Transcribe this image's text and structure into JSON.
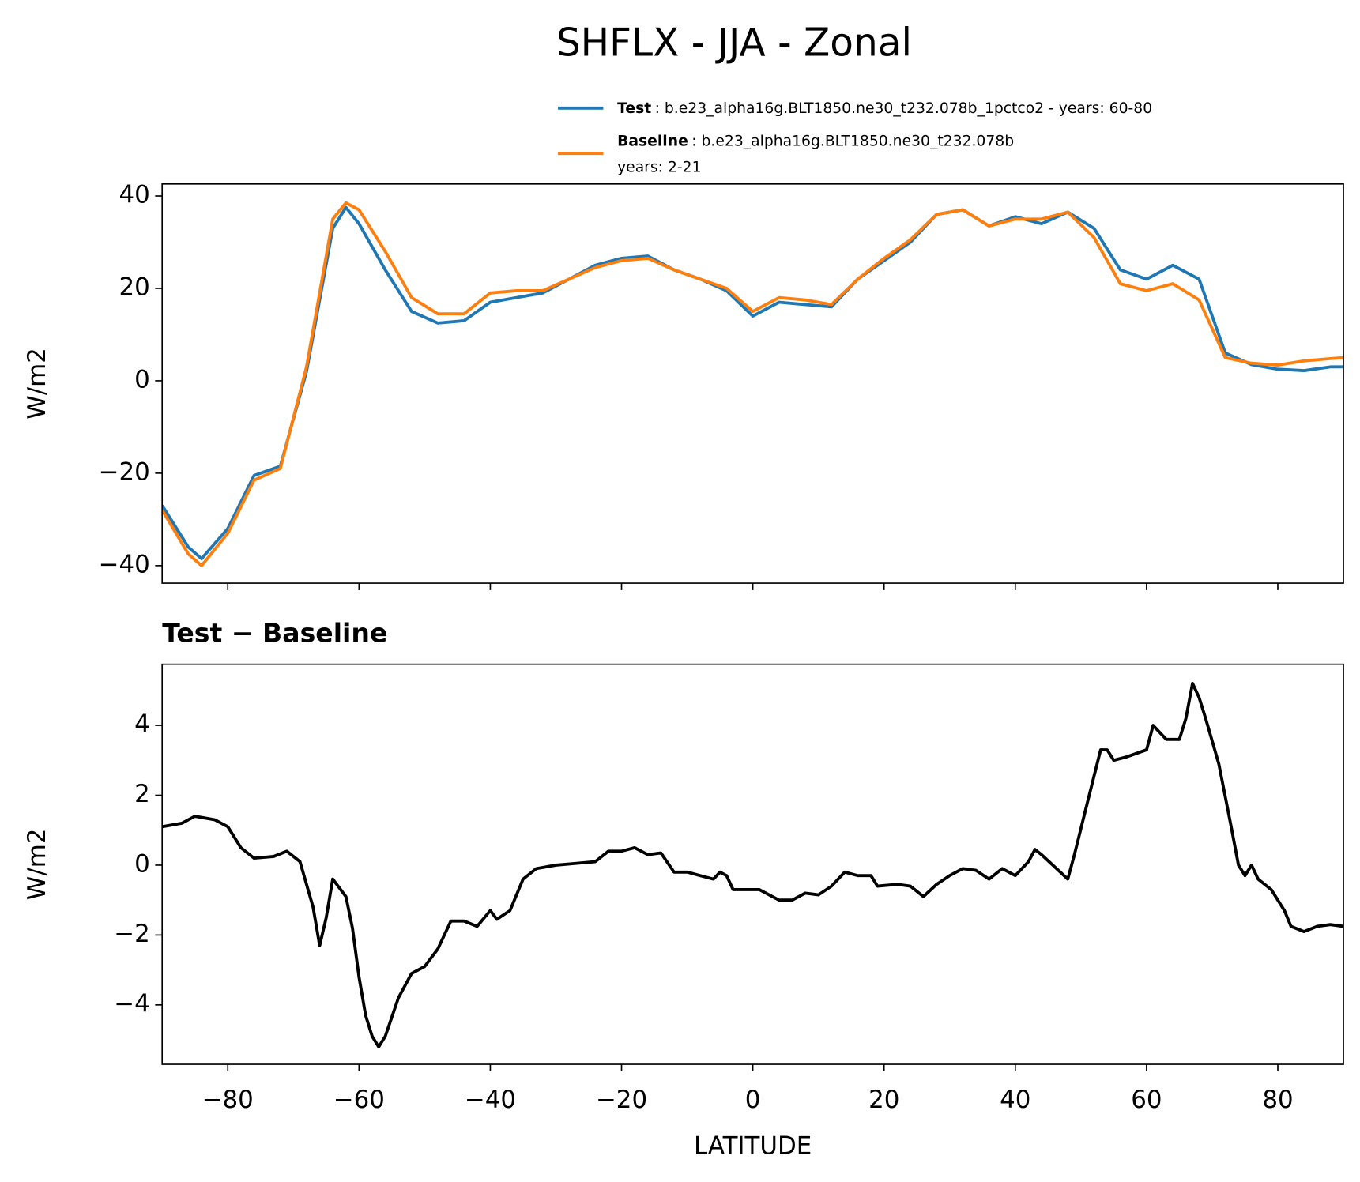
{
  "chart_data": [
    {
      "type": "line",
      "title": "SHFLX - JJA - Zonal",
      "ylabel": "W/m2",
      "x": [
        -90,
        -86,
        -84,
        -80,
        -76,
        -72,
        -68,
        -64,
        -62,
        -60,
        -56,
        -52,
        -48,
        -44,
        -40,
        -36,
        -32,
        -28,
        -24,
        -20,
        -16,
        -12,
        -8,
        -4,
        0,
        4,
        8,
        12,
        16,
        20,
        24,
        28,
        32,
        36,
        40,
        44,
        48,
        52,
        56,
        60,
        64,
        68,
        72,
        76,
        80,
        84,
        88,
        90
      ],
      "series": [
        {
          "name": "Test",
          "description": ": b.e23_alpha16g.BLT1850.ne30_t232.078b_1pctco2 - years: 60-80",
          "color": "#1f77b4",
          "values": [
            -27,
            -36,
            -38.5,
            -32,
            -20.5,
            -18.5,
            2,
            33,
            37.5,
            34,
            24,
            15,
            12.5,
            13,
            17,
            18,
            19,
            22,
            25,
            26.5,
            27,
            24,
            22,
            19.5,
            14,
            17,
            16.5,
            16,
            22,
            26,
            30,
            36,
            37,
            33.5,
            35.5,
            34,
            36.5,
            33,
            24,
            22,
            25,
            22,
            6,
            3.5,
            2.5,
            2.2,
            3,
            3
          ]
        },
        {
          "name": "Baseline",
          "description": ": b.e23_alpha16g.BLT1850.ne30_t232.078b",
          "description_line2": "years: 2-21",
          "color": "#ff7f0e",
          "values": [
            -28,
            -37.5,
            -40,
            -33,
            -21.5,
            -19,
            3,
            35,
            38.5,
            37,
            28,
            18,
            14.5,
            14.5,
            19,
            19.5,
            19.5,
            22,
            24.5,
            26,
            26.5,
            24,
            22,
            20,
            15,
            18,
            17.5,
            16.5,
            22,
            26.5,
            30.5,
            36,
            37,
            33.5,
            35,
            35,
            36.5,
            31,
            21,
            19.5,
            21,
            17.5,
            5,
            3.8,
            3.4,
            4.3,
            4.8,
            5
          ]
        }
      ],
      "xlim": [
        -90,
        90
      ],
      "xticks": [
        -80,
        -60,
        -40,
        -20,
        0,
        20,
        40,
        60,
        80
      ],
      "ylim": [
        -43.8,
        42.6
      ],
      "yticks": [
        {
          "value": -40,
          "label": "−40"
        },
        {
          "value": -20,
          "label": "−20"
        },
        0,
        20,
        40
      ]
    },
    {
      "type": "line",
      "title": "Test − Baseline",
      "xlabel": "LATITUDE",
      "ylabel": "W/m2",
      "x": [
        -90,
        -87,
        -85,
        -82,
        -80,
        -78,
        -76,
        -73,
        -71,
        -69,
        -67,
        -66,
        -65,
        -64,
        -62,
        -61,
        -60,
        -59,
        -58,
        -57,
        -56,
        -54,
        -52,
        -50,
        -48,
        -46,
        -44,
        -42,
        -40,
        -39,
        -37,
        -35,
        -33,
        -30,
        -27,
        -24,
        -22,
        -20,
        -18,
        -16,
        -14,
        -12,
        -10,
        -8,
        -6,
        -5,
        -4,
        -3,
        -1,
        1,
        3,
        4,
        6,
        8,
        10,
        12,
        14,
        16,
        18,
        19,
        22,
        24,
        26,
        28,
        30,
        32,
        34,
        36,
        38,
        40,
        42,
        43,
        44,
        46,
        48,
        49,
        51,
        53,
        54,
        55,
        57,
        60,
        61,
        63,
        65,
        66,
        67,
        68,
        69,
        71,
        73,
        74,
        75,
        76,
        77,
        79,
        81,
        82,
        84,
        86,
        88,
        90
      ],
      "series": [
        {
          "name": "Test − Baseline",
          "color": "#000000",
          "values": [
            1.1,
            1.2,
            1.4,
            1.3,
            1.1,
            0.5,
            0.2,
            0.25,
            0.4,
            0.1,
            -1.2,
            -2.3,
            -1.5,
            -0.4,
            -0.9,
            -1.8,
            -3.2,
            -4.3,
            -4.9,
            -5.2,
            -4.9,
            -3.8,
            -3.1,
            -2.9,
            -2.4,
            -1.6,
            -1.6,
            -1.75,
            -1.3,
            -1.55,
            -1.3,
            -0.4,
            -0.1,
            0.0,
            0.05,
            0.1,
            0.4,
            0.4,
            0.5,
            0.3,
            0.35,
            -0.2,
            -0.2,
            -0.3,
            -0.4,
            -0.2,
            -0.3,
            -0.7,
            -0.7,
            -0.7,
            -0.9,
            -1.0,
            -1.0,
            -0.8,
            -0.85,
            -0.6,
            -0.2,
            -0.3,
            -0.3,
            -0.6,
            -0.55,
            -0.6,
            -0.9,
            -0.55,
            -0.3,
            -0.1,
            -0.15,
            -0.4,
            -0.1,
            -0.3,
            0.1,
            0.45,
            0.3,
            -0.05,
            -0.4,
            0.3,
            1.8,
            3.3,
            3.3,
            3.0,
            3.1,
            3.3,
            4.0,
            3.6,
            3.6,
            4.2,
            5.2,
            4.8,
            4.2,
            2.9,
            1.0,
            0.0,
            -0.3,
            0.0,
            -0.4,
            -0.7,
            -1.3,
            -1.75,
            -1.9,
            -1.75,
            -1.7,
            -1.75
          ]
        }
      ],
      "xlim": [
        -90,
        90
      ],
      "xticks": [
        {
          "value": -80,
          "label": "−80"
        },
        {
          "value": -60,
          "label": "−60"
        },
        {
          "value": -40,
          "label": "−40"
        },
        {
          "value": -20,
          "label": "−20"
        },
        0,
        20,
        40,
        60,
        80
      ],
      "ylim": [
        -5.7,
        5.75
      ],
      "yticks": [
        {
          "value": -4,
          "label": "−4"
        },
        {
          "value": -2,
          "label": "−2"
        },
        0,
        2,
        4
      ]
    }
  ]
}
